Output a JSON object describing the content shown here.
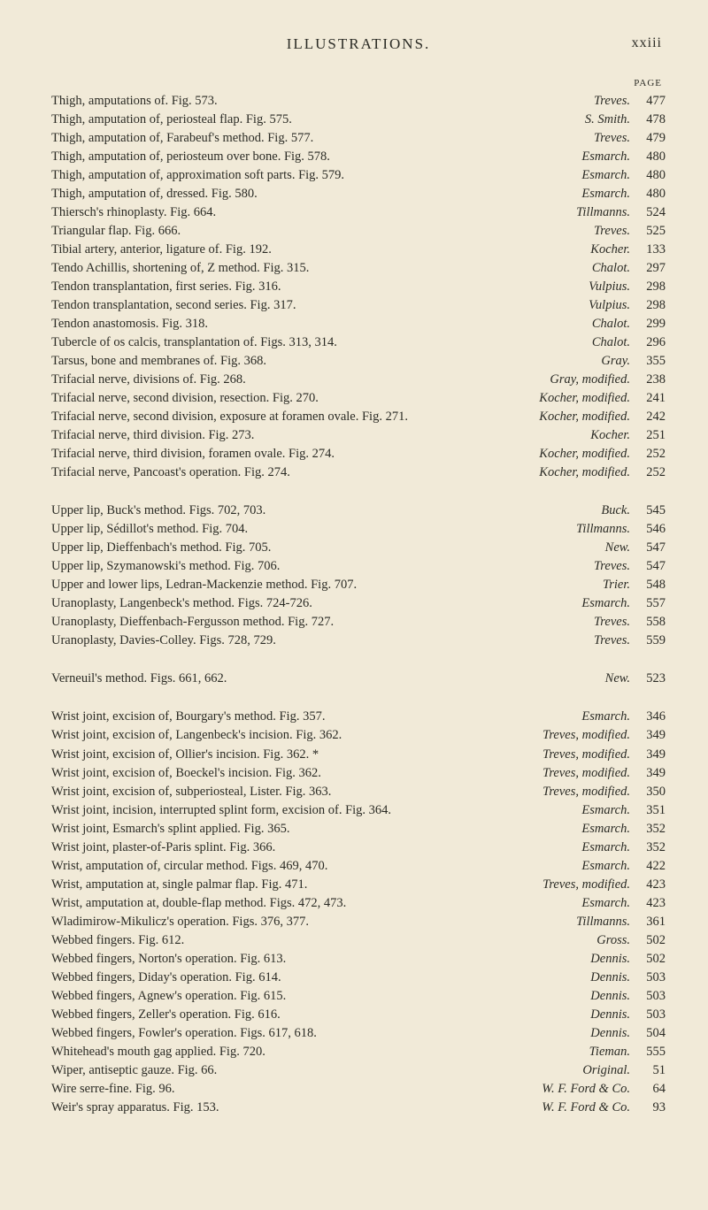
{
  "header": {
    "title": "ILLUSTRATIONS.",
    "roman": "xxiii",
    "page_label": "PAGE"
  },
  "blocks": [
    {
      "entries": [
        {
          "desc": "Thigh, amputations of.  Fig. 573.",
          "src": "Treves.",
          "page": "477"
        },
        {
          "desc": "Thigh, amputation of, periosteal flap.  Fig. 575.",
          "src": "S. Smith.",
          "page": "478"
        },
        {
          "desc": "Thigh, amputation of, Farabeuf's method.  Fig. 577.",
          "src": "Treves.",
          "page": "479"
        },
        {
          "desc": "Thigh, amputation of, periosteum over bone.  Fig. 578.",
          "src": "Esmarch.",
          "page": "480"
        },
        {
          "desc": "Thigh, amputation of, approximation soft parts.  Fig. 579.",
          "src": "Esmarch.",
          "page": "480"
        },
        {
          "desc": "Thigh, amputation of, dressed.  Fig. 580.",
          "src": "Esmarch.",
          "page": "480"
        },
        {
          "desc": "Thiersch's rhinoplasty.  Fig. 664.",
          "src": "Tillmanns.",
          "page": "524"
        },
        {
          "desc": "Triangular flap.  Fig. 666.",
          "src": "Treves.",
          "page": "525"
        },
        {
          "desc": "Tibial artery, anterior, ligature of.  Fig. 192.",
          "src": "Kocher.",
          "page": "133"
        },
        {
          "desc": "Tendo Achillis, shortening of, Z method.  Fig. 315.",
          "src": "Chalot.",
          "page": "297"
        },
        {
          "desc": "Tendon transplantation, first series.  Fig. 316.",
          "src": "Vulpius.",
          "page": "298"
        },
        {
          "desc": "Tendon transplantation, second series.  Fig. 317.",
          "src": "Vulpius.",
          "page": "298"
        },
        {
          "desc": "Tendon anastomosis.  Fig. 318.",
          "src": "Chalot.",
          "page": "299"
        },
        {
          "desc": "Tubercle of os calcis, transplantation of.  Figs. 313, 314.",
          "src": "Chalot.",
          "page": "296"
        },
        {
          "desc": "Tarsus, bone and membranes of.  Fig. 368.",
          "src": "Gray.",
          "page": "355"
        },
        {
          "desc": "Trifacial nerve, divisions of.  Fig. 268.",
          "src": "Gray, modified.",
          "page": "238"
        },
        {
          "desc": "Trifacial nerve, second division, resection.  Fig. 270.",
          "src": "Kocher, modified.",
          "page": "241"
        },
        {
          "desc": "Trifacial nerve, second division, exposure at foramen ovale.  Fig. 271.",
          "src": "Kocher, modified.",
          "page": "242"
        },
        {
          "desc": "Trifacial nerve, third division.  Fig. 273.",
          "src": "Kocher.",
          "page": "251"
        },
        {
          "desc": "Trifacial nerve, third division, foramen ovale.  Fig. 274.",
          "src": "Kocher, modified.",
          "page": "252"
        },
        {
          "desc": "Trifacial nerve, Pancoast's operation.  Fig. 274.",
          "src": "Kocher, modified.",
          "page": "252"
        }
      ]
    },
    {
      "entries": [
        {
          "desc": "Upper lip, Buck's method.  Figs. 702, 703.",
          "src": "Buck.",
          "page": "545"
        },
        {
          "desc": "Upper lip, Sédillot's method.  Fig. 704.",
          "src": "Tillmanns.",
          "page": "546"
        },
        {
          "desc": "Upper lip, Dieffenbach's method.  Fig. 705.",
          "src": "New.",
          "page": "547"
        },
        {
          "desc": "Upper lip, Szymanowski's method.  Fig. 706.",
          "src": "Treves.",
          "page": "547"
        },
        {
          "desc": "Upper and lower lips, Ledran-Mackenzie method.  Fig. 707.",
          "src": "Trier.",
          "page": "548"
        },
        {
          "desc": "Uranoplasty, Langenbeck's method.  Figs. 724-726.",
          "src": "Esmarch.",
          "page": "557"
        },
        {
          "desc": "Uranoplasty, Dieffenbach-Fergusson method.  Fig. 727.",
          "src": "Treves.",
          "page": "558"
        },
        {
          "desc": "Uranoplasty, Davies-Colley.  Figs. 728, 729.",
          "src": "Treves.",
          "page": "559"
        }
      ]
    },
    {
      "entries": [
        {
          "desc": "Verneuil's method.  Figs. 661, 662.",
          "src": "New.",
          "page": "523"
        }
      ]
    },
    {
      "entries": [
        {
          "desc": "Wrist joint, excision of, Bourgary's method.  Fig. 357.",
          "src": "Esmarch.",
          "page": "346"
        },
        {
          "desc": "Wrist joint, excision of, Langenbeck's incision.  Fig. 362.",
          "src": "Treves, modified.",
          "page": "349"
        },
        {
          "desc": "Wrist joint, excision of, Ollier's incision.  Fig. 362.  *",
          "src": "Treves, modified.",
          "page": "349"
        },
        {
          "desc": "Wrist joint, excision of, Boeckel's incision.  Fig. 362.",
          "src": "Treves, modified.",
          "page": "349"
        },
        {
          "desc": "Wrist joint, excision of, subperiosteal, Lister.  Fig. 363.",
          "src": "Treves, modified.",
          "page": "350"
        },
        {
          "desc": "Wrist joint, incision, interrupted splint form, excision of.  Fig. 364.",
          "src": "Esmarch.",
          "page": "351"
        },
        {
          "desc": "Wrist joint, Esmarch's splint applied.  Fig. 365.",
          "src": "Esmarch.",
          "page": "352"
        },
        {
          "desc": "Wrist joint, plaster-of-Paris splint.  Fig. 366.",
          "src": "Esmarch.",
          "page": "352"
        },
        {
          "desc": "Wrist, amputation of, circular method.  Figs. 469, 470.",
          "src": "Esmarch.",
          "page": "422"
        },
        {
          "desc": "Wrist, amputation at, single palmar flap.  Fig. 471.",
          "src": "Treves, modified.",
          "page": "423"
        },
        {
          "desc": "Wrist, amputation at, double-flap method.  Figs. 472, 473.",
          "src": "Esmarch.",
          "page": "423"
        },
        {
          "desc": "Wladimirow-Mikulicz's operation.  Figs. 376, 377.",
          "src": "Tillmanns.",
          "page": "361"
        },
        {
          "desc": "Webbed fingers.  Fig. 612.",
          "src": "Gross.",
          "page": "502"
        },
        {
          "desc": "Webbed fingers, Norton's operation.  Fig. 613.",
          "src": "Dennis.",
          "page": "502"
        },
        {
          "desc": "Webbed fingers, Diday's operation.  Fig. 614.",
          "src": "Dennis.",
          "page": "503"
        },
        {
          "desc": "Webbed fingers, Agnew's operation.  Fig. 615.",
          "src": "Dennis.",
          "page": "503"
        },
        {
          "desc": "Webbed fingers, Zeller's operation.  Fig. 616.",
          "src": "Dennis.",
          "page": "503"
        },
        {
          "desc": "Webbed fingers, Fowler's operation.  Figs. 617, 618.",
          "src": "Dennis.",
          "page": "504"
        },
        {
          "desc": "Whitehead's mouth gag applied.  Fig. 720.",
          "src": "Tieman.",
          "page": "555"
        },
        {
          "desc": "Wiper, antiseptic gauze.  Fig. 66.",
          "src": "Original.",
          "page": "51"
        },
        {
          "desc": "Wire serre-fine.  Fig. 96.",
          "src": "W. F. Ford & Co.",
          "page": "64"
        },
        {
          "desc": "Weir's spray apparatus.  Fig. 153.",
          "src": "W. F. Ford & Co.",
          "page": "93"
        }
      ]
    }
  ]
}
